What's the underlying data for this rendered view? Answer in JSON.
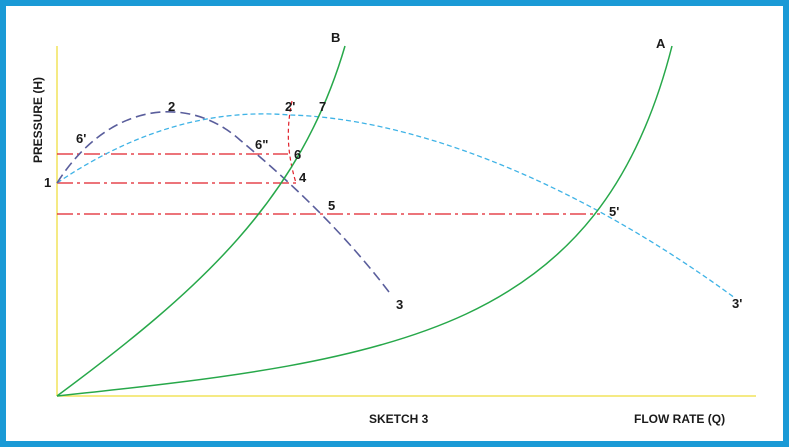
{
  "figure": {
    "caption": "SKETCH 3",
    "x_axis_label": "FLOW RATE (Q)",
    "y_axis_label": "PRESSURE (H)",
    "colors": {
      "border": "#1a9ad6",
      "axes": "#f2e35b",
      "system_curve": "#27a84a",
      "pump_curve_dark": "#5a5e9c",
      "pump_curve_light": "#3fb3e6",
      "level_line": "#e0202a"
    },
    "curve_labels": {
      "A": "A",
      "B": "B",
      "p1": "1",
      "p2": "2",
      "p2p": "2'",
      "p3": "3",
      "p3p": "3'",
      "p4": "4",
      "p5": "5",
      "p5p": "5'",
      "p6": "6",
      "p6p": "6'",
      "p6pp": "6\"",
      "p7": "7"
    }
  }
}
